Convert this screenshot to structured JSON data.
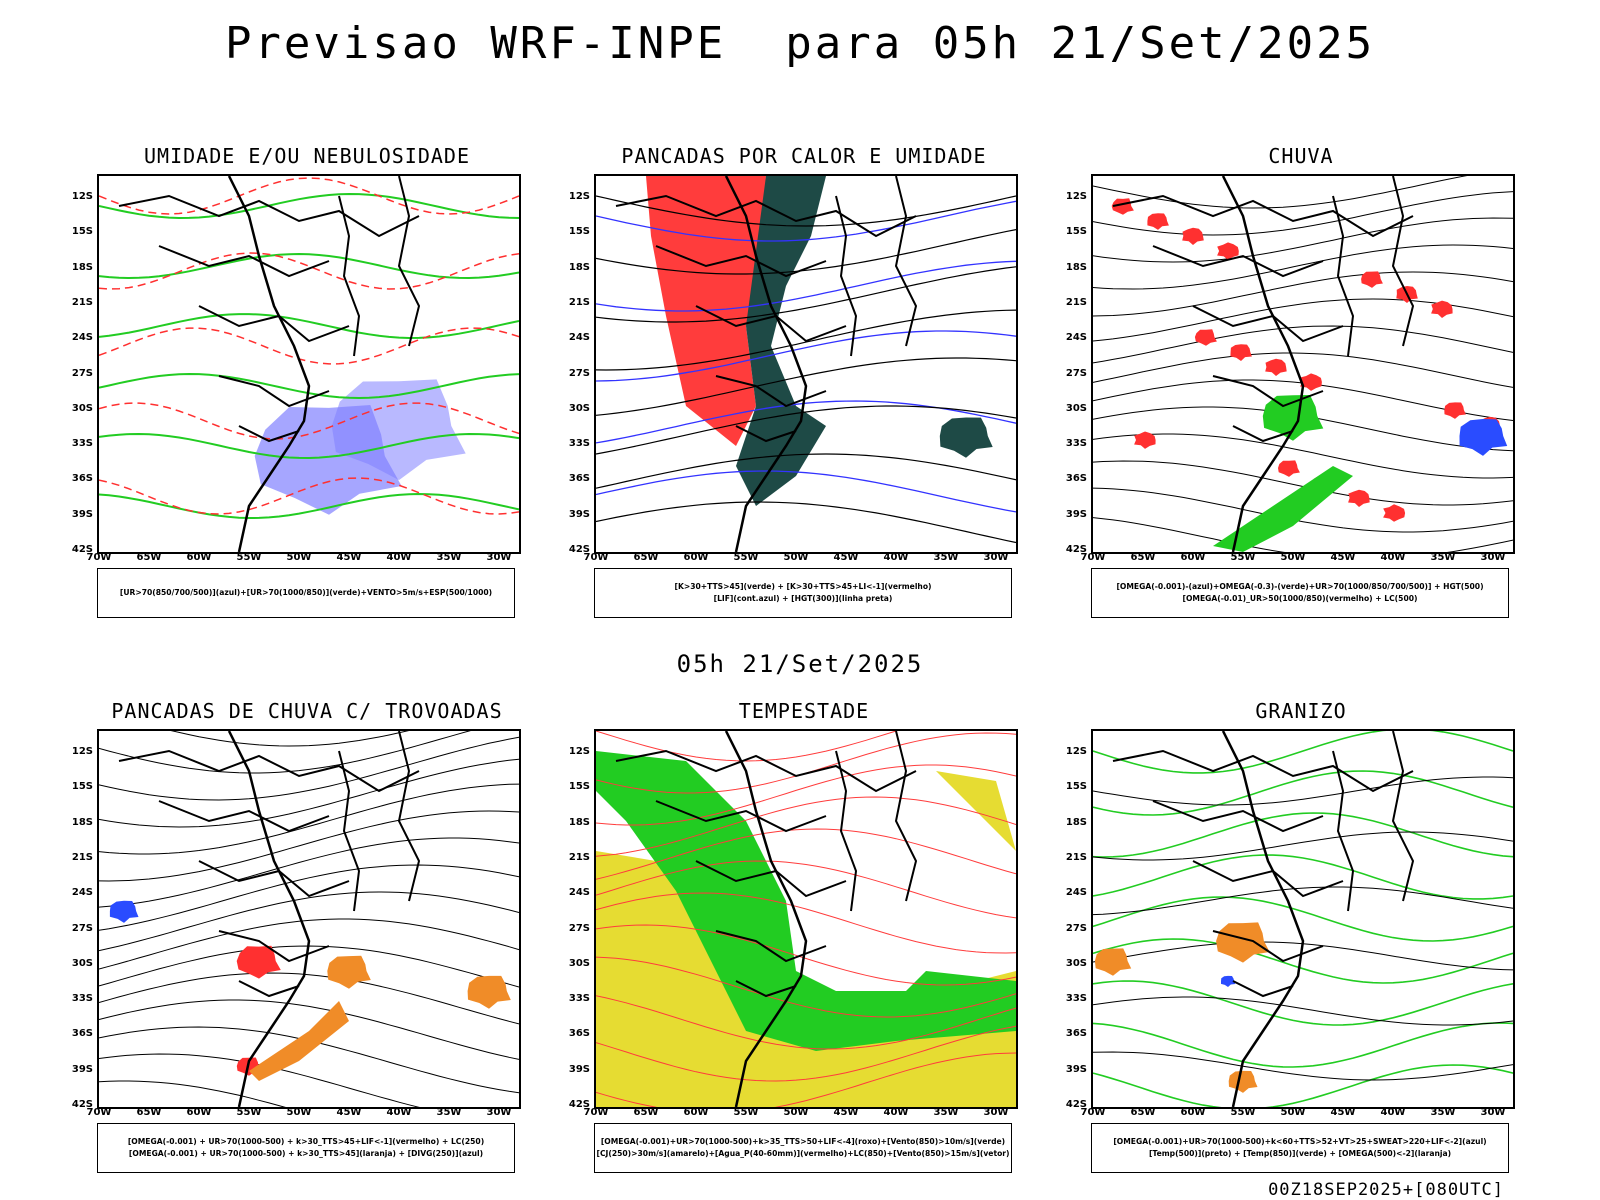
{
  "title": "Previsao WRF-INPE  para 05h 21/Set/2025",
  "mid_time": "05h 21/Set/2025",
  "footer": "00Z18SEP2025+[080UTC]",
  "lat_labels": [
    "12S",
    "15S",
    "18S",
    "21S",
    "24S",
    "27S",
    "30S",
    "33S",
    "36S",
    "39S",
    "42S"
  ],
  "lon_labels": [
    "70W",
    "65W",
    "60W",
    "55W",
    "50W",
    "45W",
    "40W",
    "35W",
    "30W"
  ],
  "panels": [
    {
      "title": "UMIDADE E/OU NEBULOSIDADE",
      "legend": [
        "[UR>70(850/700/500)](azul)+[UR>70(1000/850)](verde)+VENTO>5m/s+ESP(500/1000)"
      ],
      "colors": {
        "fill1": "#8080ff",
        "line1": "#22cc22",
        "line2": "#ff3030"
      }
    },
    {
      "title": "PANCADAS POR CALOR E UMIDADE",
      "legend": [
        "[K>30+TTS>45](verde) + [K>30+TTS>45+LI<-1](vermelho)",
        "[LIF](cont.azul) + [HGT(300)](linha preta)"
      ],
      "colors": {
        "fill1": "#ff3c3c",
        "fill2": "#1e4a46",
        "line1": "#3333ff"
      }
    },
    {
      "title": "CHUVA",
      "legend": [
        "[OMEGA(-0.001)-(azul)+OMEGA(-0.3)-(verde)+UR>70(1000/850/700/500)] + HGT(500)",
        "[OMEGA(-0.01)_UR>50(1000/850)(vermelho) + LC(500)"
      ],
      "colors": {
        "fill1": "#ff3030",
        "fill2": "#22cc22",
        "fill3": "#2a4cff"
      }
    },
    {
      "title": "PANCADAS DE CHUVA C/ TROVOADAS",
      "legend": [
        "[OMEGA(-0.001) + UR>70(1000-500) + k>30_TTS>45+LIF<-1](vermelho) + LC(250)",
        "[OMEGA(-0.001) + UR>70(1000-500) + k>30_TTS>45](laranja) + [DIVG(250)](azul)"
      ],
      "colors": {
        "fill1": "#ff3030",
        "fill2": "#f08c28",
        "fill3": "#2a4cff"
      }
    },
    {
      "title": "TEMPESTADE",
      "legend": [
        "[OMEGA(-0.001)+UR>70(1000-500)+k>35_TTS>50+LIF<-4](roxo)+[Vento(850)>10m/s](verde)",
        "[CJ(250)>30m/s](amarelo)+[Agua_P(40-60mm)](vermelho)+LC(850)+[Vento(850)>15m/s](vetor)"
      ],
      "colors": {
        "fill1": "#e6dc32",
        "fill2": "#22cc22",
        "line1": "#ff3c3c"
      }
    },
    {
      "title": "GRANIZO",
      "legend": [
        "[OMEGA(-0.001)+UR>70(1000-500)+k<60+TTS>52+VT>25+SWEAT>220+LIF<-2](azul)",
        "[Temp(500)](preto) + [Temp(850)](verde) + [OMEGA(500)<-2](laranja)"
      ],
      "colors": {
        "line1": "#22cc22",
        "fill1": "#f08c28",
        "fill2": "#2a4cff"
      }
    }
  ]
}
